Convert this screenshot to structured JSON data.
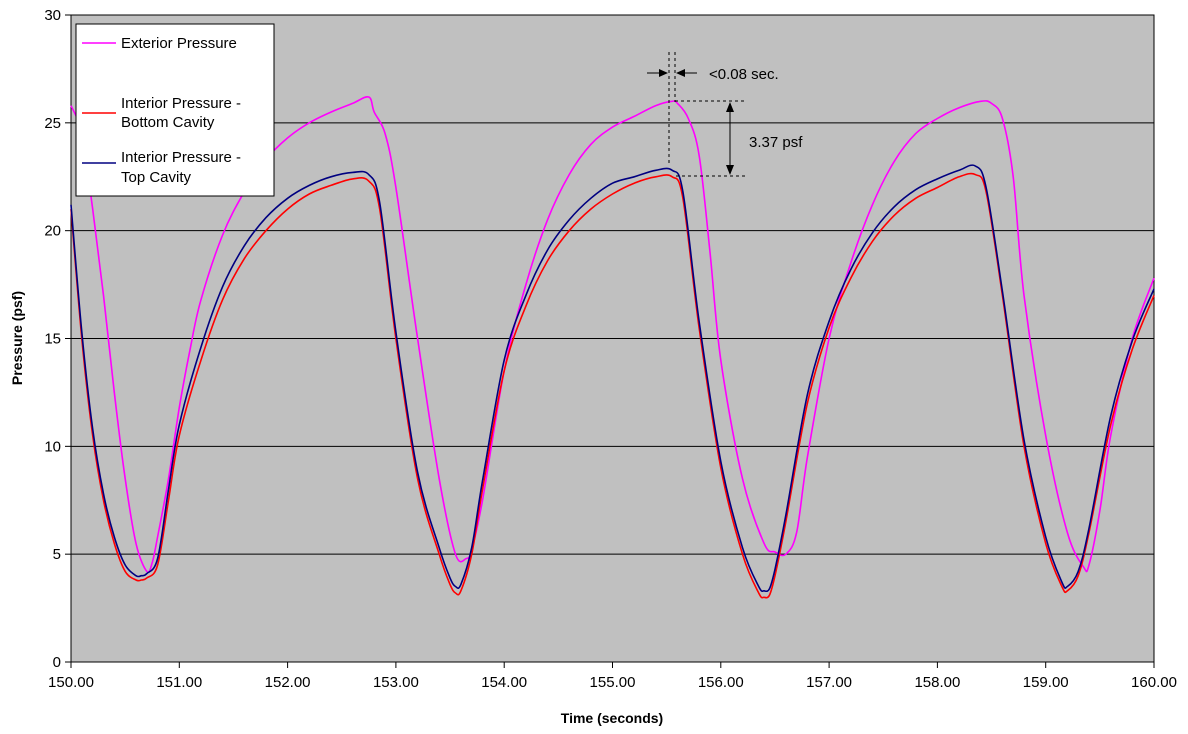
{
  "chart_data": {
    "type": "line",
    "title": "",
    "xlabel": "Time (seconds)",
    "ylabel": "Pressure (psf)",
    "xlim": [
      150,
      160
    ],
    "ylim": [
      0,
      30
    ],
    "x_ticks": [
      "150.00",
      "151.00",
      "152.00",
      "153.00",
      "154.00",
      "155.00",
      "156.00",
      "157.00",
      "158.00",
      "159.00",
      "160.00"
    ],
    "y_ticks": [
      "0",
      "5",
      "10",
      "15",
      "20",
      "25",
      "30"
    ],
    "grid": {
      "horizontal": true,
      "vertical": false
    },
    "plot_background": "#c0c0c0",
    "legend": {
      "position": "top-left",
      "entries": [
        {
          "label_lines": [
            "Exterior Pressure"
          ],
          "color": "#ff00ff"
        },
        {
          "label_lines": [
            "Interior Pressure -",
            "Bottom Cavity"
          ],
          "color": "#ff0000"
        },
        {
          "label_lines": [
            "Interior Pressure -",
            "Top Cavity"
          ],
          "color": "#000080"
        }
      ]
    },
    "annotations": [
      {
        "text": "<0.08 sec."
      },
      {
        "text": "3.37 psf"
      }
    ],
    "series": [
      {
        "name": "Exterior Pressure",
        "color": "#ff00ff",
        "x": [
          150.0,
          150.1,
          150.2,
          150.3,
          150.4,
          150.5,
          150.6,
          150.7,
          150.75,
          150.8,
          150.9,
          151.0,
          151.1,
          151.2,
          151.4,
          151.6,
          151.8,
          152.0,
          152.2,
          152.4,
          152.6,
          152.75,
          152.8,
          152.9,
          153.0,
          153.2,
          153.4,
          153.55,
          153.65,
          153.7,
          153.8,
          154.0,
          154.2,
          154.4,
          154.6,
          154.8,
          155.0,
          155.2,
          155.4,
          155.55,
          155.6,
          155.7,
          155.8,
          155.9,
          156.0,
          156.2,
          156.4,
          156.5,
          156.6,
          156.7,
          156.8,
          157.0,
          157.2,
          157.4,
          157.6,
          157.8,
          158.0,
          158.2,
          158.4,
          158.5,
          158.6,
          158.7,
          158.8,
          159.0,
          159.2,
          159.35,
          159.4,
          159.5,
          159.6,
          159.8,
          160.0
        ],
        "values": [
          25.8,
          24.5,
          21.0,
          17.0,
          12.5,
          8.5,
          5.5,
          4.2,
          4.6,
          5.8,
          8.5,
          11.8,
          14.5,
          16.8,
          19.8,
          21.8,
          23.3,
          24.3,
          25.0,
          25.5,
          25.9,
          26.2,
          25.5,
          24.5,
          22.0,
          15.0,
          8.5,
          5.0,
          4.8,
          5.2,
          7.5,
          13.5,
          17.5,
          20.5,
          22.6,
          24.0,
          24.8,
          25.3,
          25.8,
          26.0,
          25.9,
          25.2,
          23.5,
          19.0,
          14.0,
          8.5,
          5.5,
          5.1,
          5.0,
          6.0,
          9.5,
          15.0,
          18.5,
          21.2,
          23.2,
          24.5,
          25.2,
          25.7,
          26.0,
          25.9,
          25.2,
          22.5,
          17.0,
          10.5,
          6.0,
          4.4,
          4.5,
          7.0,
          10.5,
          15.0,
          17.8
        ]
      },
      {
        "name": "Interior Pressure - Bottom Cavity",
        "color": "#ff0000",
        "x": [
          150.0,
          150.1,
          150.2,
          150.3,
          150.4,
          150.5,
          150.6,
          150.65,
          150.7,
          150.8,
          150.9,
          151.0,
          151.2,
          151.4,
          151.6,
          151.8,
          152.0,
          152.2,
          152.4,
          152.6,
          152.75,
          152.85,
          153.0,
          153.2,
          153.4,
          153.5,
          153.55,
          153.6,
          153.7,
          153.8,
          154.0,
          154.2,
          154.4,
          154.6,
          154.8,
          155.0,
          155.2,
          155.4,
          155.55,
          155.65,
          155.8,
          156.0,
          156.2,
          156.35,
          156.4,
          156.45,
          156.5,
          156.6,
          156.8,
          157.0,
          157.2,
          157.4,
          157.6,
          157.8,
          158.0,
          158.2,
          158.35,
          158.45,
          158.6,
          158.8,
          159.0,
          159.15,
          159.2,
          159.3,
          159.4,
          159.6,
          159.8,
          160.0
        ],
        "values": [
          21.0,
          15.0,
          10.5,
          7.5,
          5.5,
          4.2,
          3.8,
          3.8,
          3.9,
          4.5,
          7.5,
          10.5,
          14.0,
          16.8,
          18.7,
          20.0,
          21.0,
          21.7,
          22.1,
          22.4,
          22.3,
          21.0,
          15.0,
          8.5,
          5.0,
          3.6,
          3.2,
          3.3,
          5.0,
          8.0,
          13.5,
          16.5,
          18.6,
          20.0,
          21.0,
          21.7,
          22.2,
          22.5,
          22.5,
          21.5,
          15.5,
          9.0,
          5.0,
          3.2,
          3.0,
          3.1,
          4.0,
          6.5,
          12.0,
          15.5,
          17.8,
          19.5,
          20.7,
          21.5,
          22.0,
          22.5,
          22.6,
          21.8,
          17.0,
          10.0,
          5.5,
          3.5,
          3.3,
          4.0,
          6.0,
          11.0,
          14.5,
          17.0
        ]
      },
      {
        "name": "Interior Pressure - Top Cavity",
        "color": "#000080",
        "x": [
          150.0,
          150.1,
          150.2,
          150.3,
          150.4,
          150.5,
          150.6,
          150.65,
          150.7,
          150.8,
          150.9,
          151.0,
          151.2,
          151.4,
          151.6,
          151.8,
          152.0,
          152.2,
          152.4,
          152.6,
          152.75,
          152.85,
          153.0,
          153.2,
          153.4,
          153.5,
          153.55,
          153.6,
          153.7,
          153.8,
          154.0,
          154.2,
          154.4,
          154.6,
          154.8,
          155.0,
          155.2,
          155.4,
          155.55,
          155.65,
          155.8,
          156.0,
          156.2,
          156.35,
          156.4,
          156.45,
          156.5,
          156.6,
          156.8,
          157.0,
          157.2,
          157.4,
          157.6,
          157.8,
          158.0,
          158.2,
          158.35,
          158.45,
          158.6,
          158.8,
          159.0,
          159.15,
          159.2,
          159.3,
          159.4,
          159.6,
          159.8,
          160.0
        ],
        "values": [
          21.2,
          15.3,
          10.8,
          7.8,
          5.8,
          4.5,
          4.0,
          4.0,
          4.1,
          4.8,
          8.0,
          11.0,
          14.6,
          17.4,
          19.3,
          20.6,
          21.5,
          22.1,
          22.5,
          22.7,
          22.6,
          21.3,
          15.3,
          8.8,
          5.3,
          3.9,
          3.5,
          3.6,
          5.3,
          8.4,
          14.0,
          17.0,
          19.1,
          20.5,
          21.5,
          22.2,
          22.5,
          22.8,
          22.8,
          21.8,
          15.8,
          9.3,
          5.3,
          3.5,
          3.3,
          3.4,
          4.3,
          6.8,
          12.4,
          15.8,
          18.2,
          19.9,
          21.1,
          21.9,
          22.4,
          22.8,
          23.0,
          22.0,
          17.2,
          10.3,
          5.8,
          3.7,
          3.5,
          4.2,
          6.2,
          11.4,
          14.9,
          17.3
        ]
      }
    ]
  }
}
